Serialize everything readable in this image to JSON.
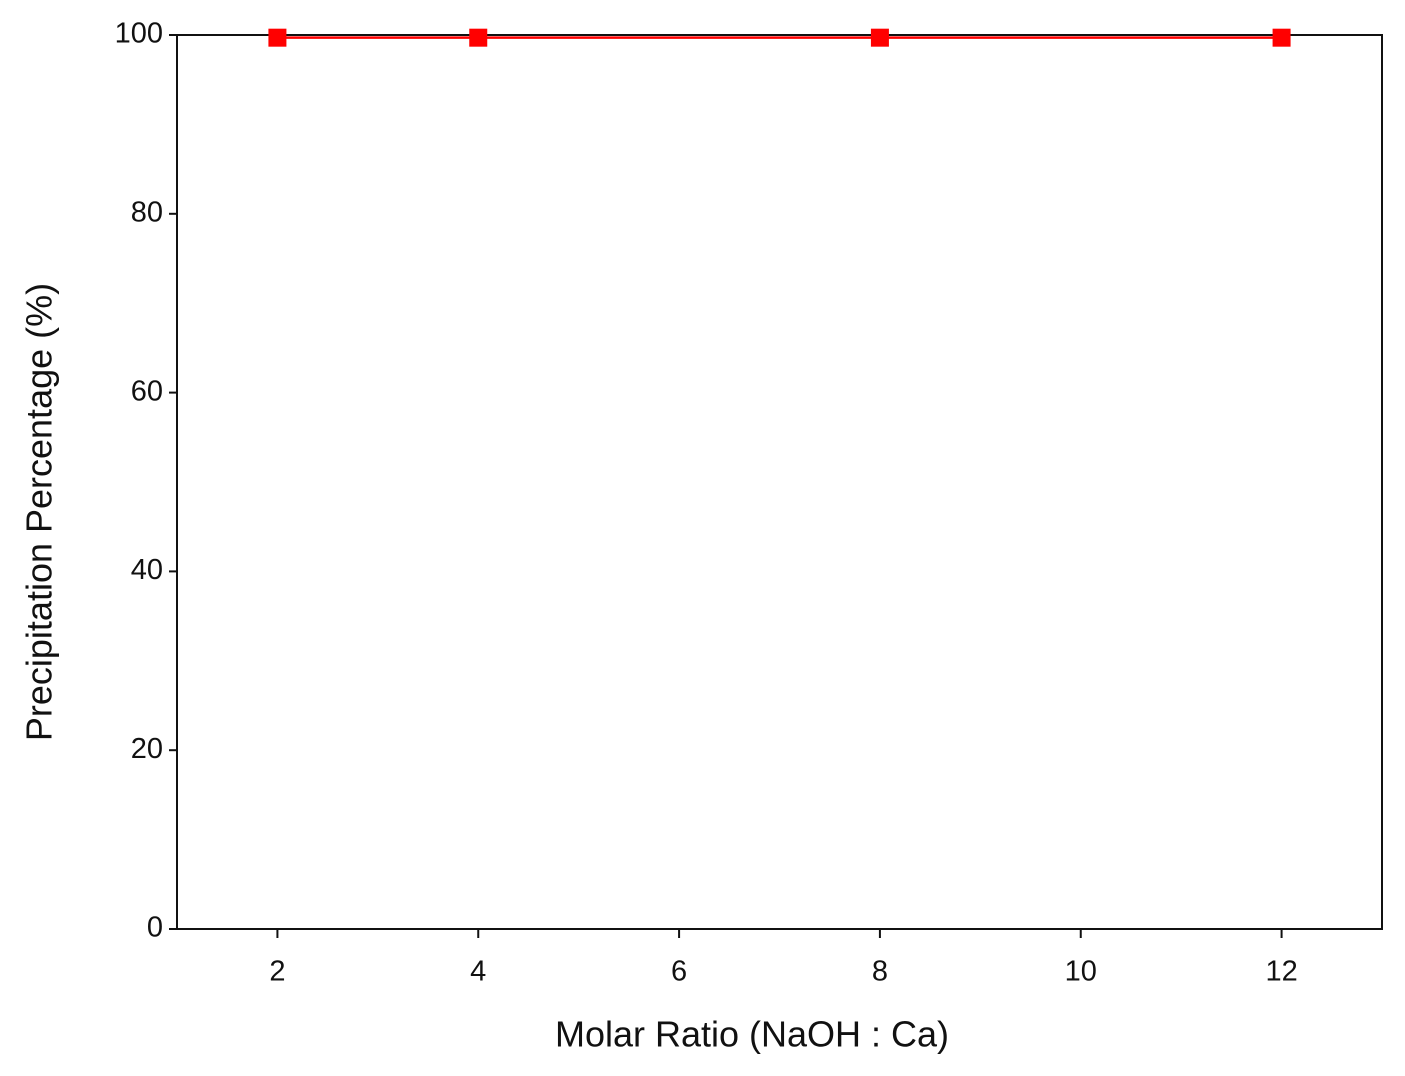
{
  "chart_data": {
    "type": "line",
    "x_label": "Molar Ratio (NaOH : Ca)",
    "y_label": "Precipitation Percentage (%)",
    "x": [
      2,
      4,
      8,
      12
    ],
    "series": [
      {
        "color": "#ff0000",
        "values": [
          99.7,
          99.7,
          99.7,
          99.7
        ]
      }
    ],
    "xlim": [
      1,
      13
    ],
    "xticks": [
      2,
      4,
      6,
      8,
      10,
      12
    ],
    "ylim": [
      0,
      100
    ],
    "yticks": [
      0,
      20,
      40,
      60,
      80,
      100
    ],
    "grid": false,
    "marker": "square"
  }
}
